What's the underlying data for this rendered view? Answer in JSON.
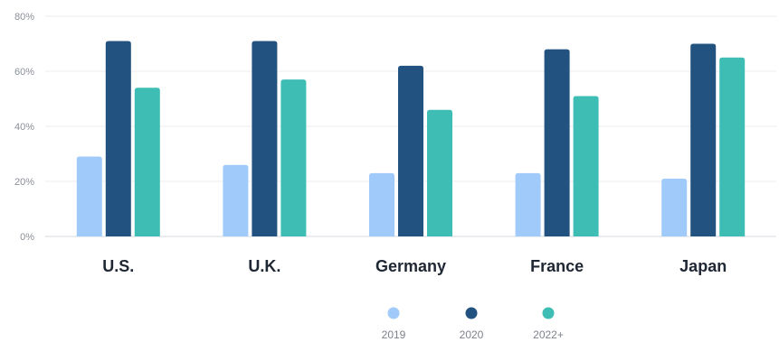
{
  "chart_data": {
    "type": "bar",
    "categories": [
      "U.S.",
      "U.K.",
      "Germany",
      "France",
      "Japan"
    ],
    "series": [
      {
        "name": "2019",
        "color": "#9fcaf9",
        "values": [
          29,
          26,
          23,
          23,
          21
        ]
      },
      {
        "name": "2020",
        "color": "#22527f",
        "values": [
          71,
          71,
          62,
          68,
          70
        ]
      },
      {
        "name": "2022+",
        "color": "#3dbdb3",
        "values": [
          54,
          57,
          46,
          51,
          65
        ]
      }
    ],
    "ylim": [
      0,
      80
    ],
    "yticks": [
      0,
      20,
      40,
      60,
      80
    ],
    "ytick_labels": [
      "0%",
      "20%",
      "40%",
      "60%",
      "80%"
    ],
    "grid": true,
    "legend_position": "bottom-center",
    "title": "",
    "xlabel": "",
    "ylabel": ""
  }
}
